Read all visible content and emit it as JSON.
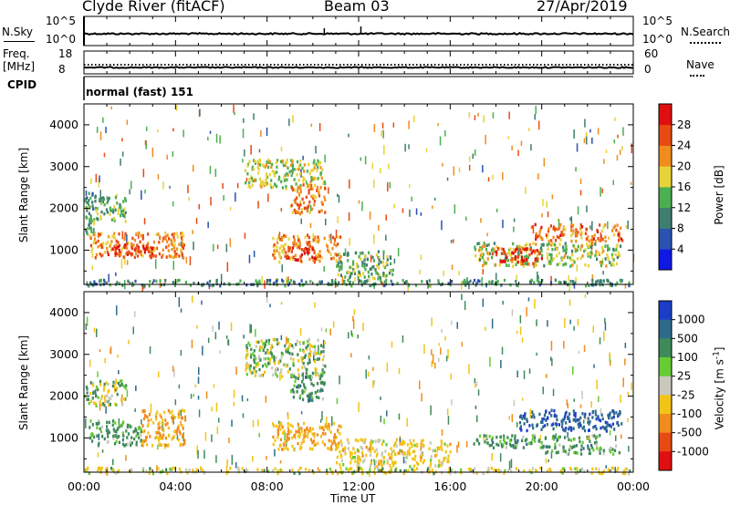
{
  "header": {
    "station": "Clyde River (fitACF)",
    "beam": "Beam 03",
    "date": "27/Apr/2019"
  },
  "nsky_panel": {
    "left_label": "N.Sky",
    "left_ticks": [
      "10^5",
      "10^0"
    ],
    "right_ticks": [
      "10^5",
      "10^0"
    ],
    "right_label": "N.Search"
  },
  "freq_panel": {
    "left_label_line1": "Freq.",
    "left_label_line2": "[MHz]",
    "left_ticks": [
      "18",
      "8"
    ],
    "right_ticks": [
      "60",
      "0"
    ],
    "right_label": "Nave"
  },
  "cpid": {
    "label": "CPID",
    "value": "normal (fast) 151"
  },
  "x_axis": {
    "ticks": [
      "00:00",
      "04:00",
      "08:00",
      "12:00",
      "16:00",
      "20:00",
      "00:00"
    ],
    "label": "Time UT"
  },
  "chart_data": [
    {
      "type": "heatmap",
      "title": "",
      "xlabel": "Time UT",
      "ylabel": "Slant Range [km]",
      "x_range_hours": [
        0,
        24
      ],
      "ylim": [
        180,
        4500
      ],
      "y_ticks": [
        1000,
        2000,
        3000,
        4000
      ],
      "colorbar": {
        "label": "Power [dB]",
        "ticks": [
          "4",
          "8",
          "12",
          "16",
          "20",
          "24",
          "28"
        ],
        "colors": [
          "#1018e6",
          "#2a52b0",
          "#3e7e6e",
          "#4caf50",
          "#e8d23a",
          "#f08c1e",
          "#e84a14",
          "#e01010"
        ]
      },
      "regions": [
        {
          "t": [
            0.0,
            0.4
          ],
          "r": [
            1400,
            2400
          ],
          "value": 10
        },
        {
          "t": [
            0.0,
            1.8
          ],
          "r": [
            2000,
            2350
          ],
          "value": 11
        },
        {
          "t": [
            0.4,
            1.8
          ],
          "r": [
            1700,
            2000
          ],
          "value": 13
        },
        {
          "t": [
            0.2,
            4.4
          ],
          "r": [
            850,
            1450
          ],
          "value": 20
        },
        {
          "t": [
            1.0,
            3.0
          ],
          "r": [
            900,
            1200
          ],
          "value": 25
        },
        {
          "t": [
            7.0,
            10.5
          ],
          "r": [
            2500,
            3200
          ],
          "value": 15
        },
        {
          "t": [
            9.0,
            10.5
          ],
          "r": [
            1900,
            2600
          ],
          "value": 21
        },
        {
          "t": [
            8.2,
            11.2
          ],
          "r": [
            750,
            1400
          ],
          "value": 20
        },
        {
          "t": [
            8.8,
            10.2
          ],
          "r": [
            800,
            1100
          ],
          "value": 26
        },
        {
          "t": [
            11.0,
            13.5
          ],
          "r": [
            350,
            1000
          ],
          "value": 12
        },
        {
          "t": [
            17.0,
            23.5
          ],
          "r": [
            650,
            1200
          ],
          "value": 14
        },
        {
          "t": [
            17.8,
            20.0
          ],
          "r": [
            700,
            1100
          ],
          "value": 26
        },
        {
          "t": [
            19.5,
            23.5
          ],
          "r": [
            1250,
            1650
          ],
          "value": 22
        },
        {
          "t": [
            0.0,
            24.0
          ],
          "r": [
            180,
            320
          ],
          "value": 9
        }
      ]
    },
    {
      "type": "heatmap",
      "title": "",
      "xlabel": "Time UT",
      "ylabel": "Slant Range [km]",
      "x_range_hours": [
        0,
        24
      ],
      "ylim": [
        180,
        4500
      ],
      "y_ticks": [
        1000,
        2000,
        3000,
        4000
      ],
      "colorbar": {
        "label": "Velocity [m s^-1]",
        "ticks": [
          "1000",
          "500",
          "100",
          "25",
          "-25",
          "-100",
          "-500",
          "-1000"
        ],
        "colors": [
          "#1a3ec8",
          "#2f6a8c",
          "#3f8a5a",
          "#66cc33",
          "#c8c8bc",
          "#f2c418",
          "#f08c1e",
          "#e84a14",
          "#e01010"
        ]
      },
      "regions": [
        {
          "t": [
            0.0,
            1.8
          ],
          "r": [
            1800,
            2400
          ],
          "value": 0
        },
        {
          "t": [
            0.2,
            2.5
          ],
          "r": [
            850,
            1450
          ],
          "value": 120
        },
        {
          "t": [
            2.5,
            4.4
          ],
          "r": [
            850,
            1700
          ],
          "value": -300
        },
        {
          "t": [
            7.0,
            10.5
          ],
          "r": [
            2500,
            3400
          ],
          "value": 0
        },
        {
          "t": [
            9.0,
            10.5
          ],
          "r": [
            1900,
            2600
          ],
          "value": 150
        },
        {
          "t": [
            8.2,
            11.2
          ],
          "r": [
            750,
            1400
          ],
          "value": -300
        },
        {
          "t": [
            11.0,
            16.0
          ],
          "r": [
            350,
            1000
          ],
          "value": -150
        },
        {
          "t": [
            17.0,
            22.5
          ],
          "r": [
            800,
            1100
          ],
          "value": 150
        },
        {
          "t": [
            19.0,
            23.5
          ],
          "r": [
            1200,
            1700
          ],
          "value": 700
        },
        {
          "t": [
            20.0,
            23.5
          ],
          "r": [
            650,
            850
          ],
          "value": 130
        },
        {
          "t": [
            0.0,
            24.0
          ],
          "r": [
            180,
            320
          ],
          "value": -80
        }
      ]
    }
  ]
}
